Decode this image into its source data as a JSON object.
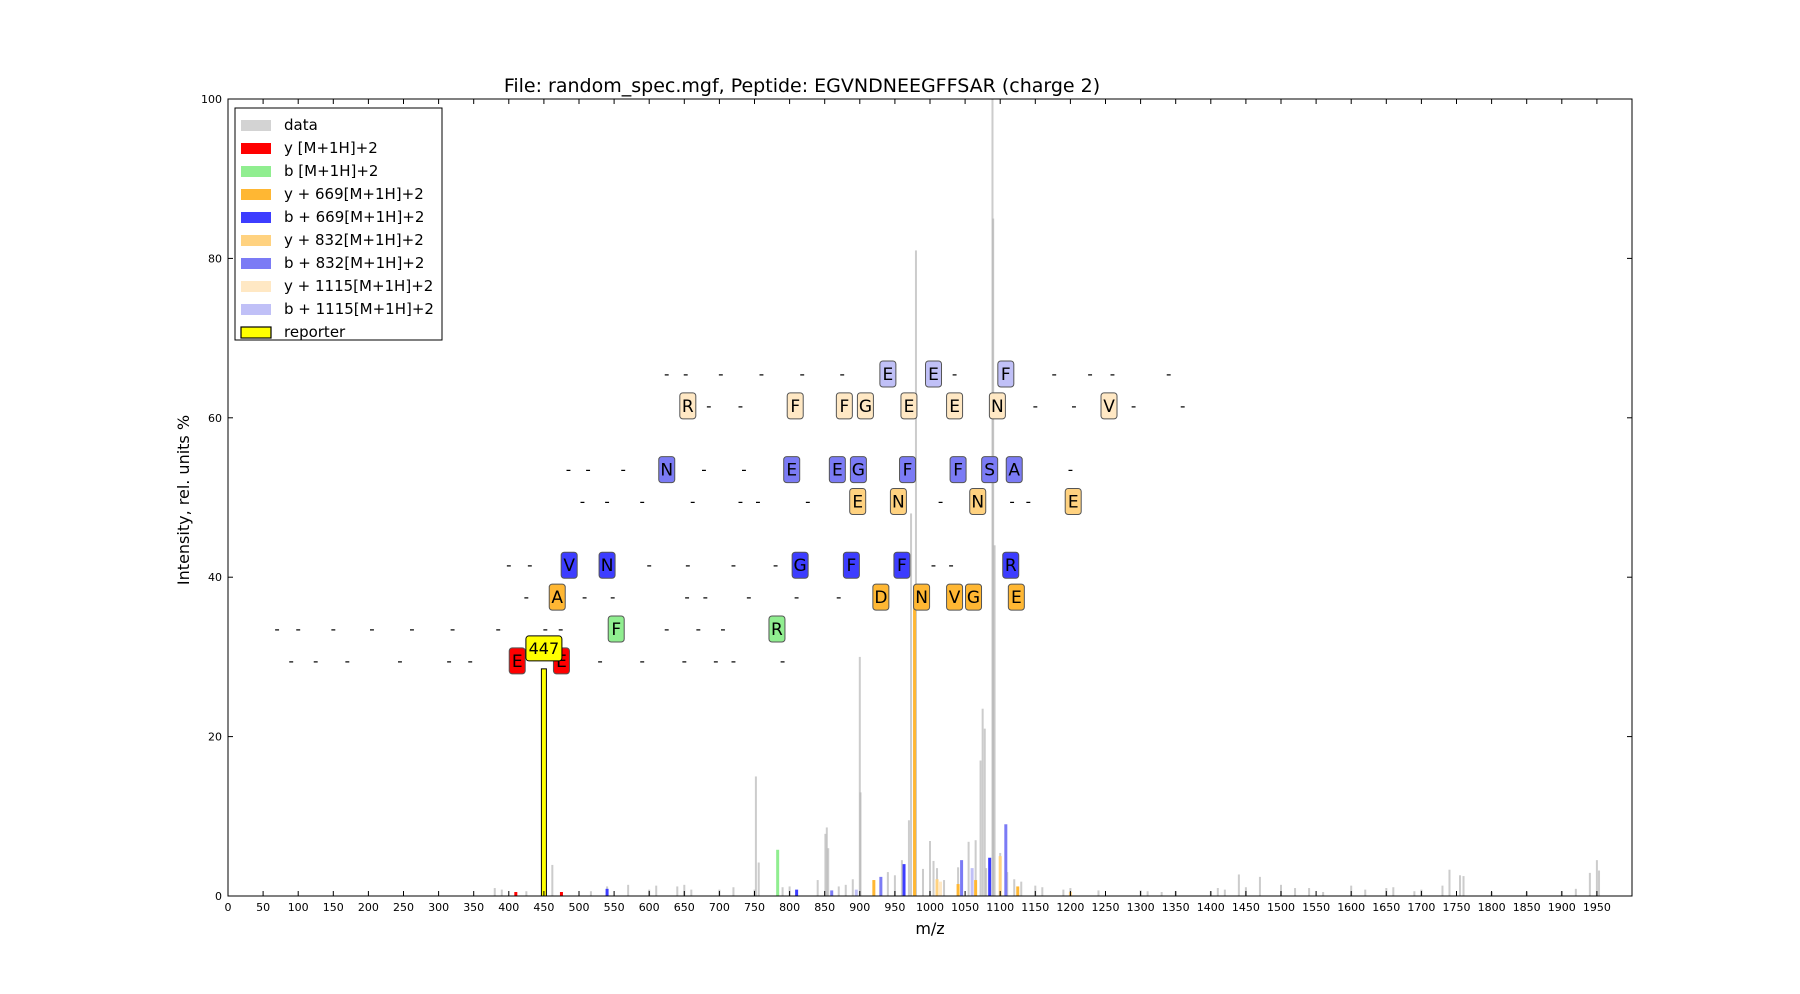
{
  "chart_data": {
    "type": "bar",
    "title": "File: random_spec.mgf, Peptide: EGVNDNEEGFFSAR (charge 2)",
    "xlabel": "m/z",
    "ylabel": "Intensity, rel. units %",
    "xlim": [
      0,
      2000
    ],
    "ylim": [
      0,
      100
    ],
    "x_ticks": [
      0,
      50,
      100,
      150,
      200,
      250,
      300,
      350,
      400,
      450,
      500,
      550,
      600,
      650,
      700,
      750,
      800,
      850,
      900,
      950,
      1000,
      1050,
      1100,
      1150,
      1200,
      1250,
      1300,
      1350,
      1400,
      1450,
      1500,
      1550,
      1600,
      1650,
      1700,
      1750,
      1800,
      1850,
      1900,
      1950
    ],
    "y_ticks": [
      0,
      20,
      40,
      60,
      80,
      100
    ],
    "grid": false,
    "legend_position": "top-left",
    "legend": [
      {
        "label": "data",
        "color": "#d3d3d3"
      },
      {
        "label": "y [M+1H]+2",
        "color": "#ff0000"
      },
      {
        "label": "b [M+1H]+2",
        "color": "#90ee90"
      },
      {
        "label": "y + 669[M+1H]+2",
        "color": "#ffb733"
      },
      {
        "label": "b + 669[M+1H]+2",
        "color": "#3d3dff"
      },
      {
        "label": "y + 832[M+1H]+2",
        "color": "#ffd280"
      },
      {
        "label": "b + 832[M+1H]+2",
        "color": "#7b7bf5"
      },
      {
        "label": "y + 1115[M+1H]+2",
        "color": "#ffe8c4"
      },
      {
        "label": "b + 1115[M+1H]+2",
        "color": "#c0c0f7"
      },
      {
        "label": "reporter",
        "color": "#ffff00"
      }
    ],
    "peaks_data": [
      [
        380,
        1
      ],
      [
        390,
        0.8
      ],
      [
        425,
        0.6
      ],
      [
        462,
        3.9
      ],
      [
        517,
        0.6
      ],
      [
        540,
        1.2
      ],
      [
        570,
        1.4
      ],
      [
        600,
        0.8
      ],
      [
        610,
        1.3
      ],
      [
        640,
        1.2
      ],
      [
        650,
        1.4
      ],
      [
        660,
        0.8
      ],
      [
        700,
        0.8
      ],
      [
        720,
        1.1
      ],
      [
        750,
        0.8
      ],
      [
        752,
        15
      ],
      [
        756,
        4.2
      ],
      [
        790,
        1.1
      ],
      [
        800,
        1.2
      ],
      [
        840,
        2
      ],
      [
        851,
        7.8
      ],
      [
        853,
        8.6
      ],
      [
        855,
        6
      ],
      [
        870,
        1.2
      ],
      [
        880,
        1.4
      ],
      [
        890,
        2.1
      ],
      [
        900,
        30
      ],
      [
        901,
        13
      ],
      [
        920,
        2
      ],
      [
        940,
        3
      ],
      [
        950,
        2.6
      ],
      [
        960,
        4.5
      ],
      [
        970,
        9.5
      ],
      [
        973,
        48
      ],
      [
        980,
        81
      ],
      [
        990,
        3.4
      ],
      [
        1000,
        6.9
      ],
      [
        1005,
        4.4
      ],
      [
        1010,
        3.5
      ],
      [
        1020,
        2
      ],
      [
        1040,
        3.6
      ],
      [
        1055,
        6.8
      ],
      [
        1065,
        7
      ],
      [
        1072,
        17
      ],
      [
        1075,
        23.5
      ],
      [
        1078,
        21
      ],
      [
        1080,
        3.5
      ],
      [
        1089,
        100
      ],
      [
        1090,
        85
      ],
      [
        1092,
        44
      ],
      [
        1100,
        5.4
      ],
      [
        1110,
        3
      ],
      [
        1120,
        2.1
      ],
      [
        1130,
        1.8
      ],
      [
        1150,
        1.3
      ],
      [
        1160,
        1.1
      ],
      [
        1190,
        0.8
      ],
      [
        1200,
        1
      ],
      [
        1240,
        0.7
      ],
      [
        1300,
        0.7
      ],
      [
        1310,
        0.6
      ],
      [
        1330,
        0.5
      ],
      [
        1350,
        0.6
      ],
      [
        1400,
        0.6
      ],
      [
        1410,
        1
      ],
      [
        1420,
        0.8
      ],
      [
        1440,
        2.7
      ],
      [
        1450,
        1.1
      ],
      [
        1470,
        2.4
      ],
      [
        1500,
        1.4
      ],
      [
        1520,
        1
      ],
      [
        1540,
        1
      ],
      [
        1560,
        0.5
      ],
      [
        1600,
        1.3
      ],
      [
        1620,
        0.8
      ],
      [
        1650,
        1
      ],
      [
        1660,
        1.1
      ],
      [
        1690,
        0.6
      ],
      [
        1700,
        0.8
      ],
      [
        1730,
        1.3
      ],
      [
        1740,
        3.3
      ],
      [
        1755,
        2.6
      ],
      [
        1760,
        2.5
      ],
      [
        1800,
        0.5
      ],
      [
        1850,
        0.5
      ],
      [
        1900,
        0.6
      ],
      [
        1920,
        0.9
      ],
      [
        1940,
        2.9
      ],
      [
        1950,
        4.5
      ],
      [
        1953,
        3.2
      ]
    ],
    "peaks_colored": [
      {
        "x": 450,
        "y": 28.5,
        "series": "reporter"
      },
      {
        "x": 410,
        "y": 0.5,
        "series": "y [M+1H]+2"
      },
      {
        "x": 475,
        "y": 0.5,
        "series": "y [M+1H]+2"
      },
      {
        "x": 783,
        "y": 5.8,
        "series": "b [M+1H]+2"
      },
      {
        "x": 978,
        "y": 37,
        "series": "y + 669[M+1H]+2"
      },
      {
        "x": 920,
        "y": 2,
        "series": "y + 669[M+1H]+2"
      },
      {
        "x": 1040,
        "y": 1.5,
        "series": "y + 669[M+1H]+2"
      },
      {
        "x": 1065,
        "y": 2,
        "series": "y + 669[M+1H]+2"
      },
      {
        "x": 1125,
        "y": 1.2,
        "series": "y + 669[M+1H]+2"
      },
      {
        "x": 1100,
        "y": 5,
        "series": "y + 832[M+1H]+2"
      },
      {
        "x": 1010,
        "y": 2.1,
        "series": "y + 832[M+1H]+2"
      },
      {
        "x": 1200,
        "y": 0.5,
        "series": "y + 832[M+1H]+2"
      },
      {
        "x": 963,
        "y": 4,
        "series": "b + 669[M+1H]+2"
      },
      {
        "x": 1085,
        "y": 4.8,
        "series": "b + 669[M+1H]+2"
      },
      {
        "x": 540,
        "y": 0.9,
        "series": "b + 669[M+1H]+2"
      },
      {
        "x": 810,
        "y": 0.8,
        "series": "b + 669[M+1H]+2"
      },
      {
        "x": 1045,
        "y": 4.5,
        "series": "b + 832[M+1H]+2"
      },
      {
        "x": 1108,
        "y": 9,
        "series": "b + 832[M+1H]+2"
      },
      {
        "x": 930,
        "y": 2.4,
        "series": "b + 832[M+1H]+2"
      },
      {
        "x": 860,
        "y": 0.7,
        "series": "b + 832[M+1H]+2"
      },
      {
        "x": 895,
        "y": 0.8,
        "series": "b + 1115[M+1H]+2"
      },
      {
        "x": 1060,
        "y": 3.5,
        "series": "b + 1115[M+1H]+2"
      },
      {
        "x": 1015,
        "y": 1.8,
        "series": "y + 1115[M+1H]+2"
      }
    ],
    "annotation_rows": [
      {
        "y": 29.5,
        "series": "y [M+1H]+2",
        "labels": [
          [
            90,
            "-"
          ],
          [
            125,
            "-"
          ],
          [
            170,
            "-"
          ],
          [
            245,
            "-"
          ],
          [
            315,
            "-"
          ],
          [
            345,
            "-"
          ],
          [
            412,
            "E"
          ],
          [
            475,
            "E"
          ],
          [
            530,
            "-"
          ],
          [
            590,
            "-"
          ],
          [
            650,
            "-"
          ],
          [
            695,
            "-"
          ],
          [
            720,
            "-"
          ],
          [
            790,
            "-"
          ]
        ]
      },
      {
        "y": 33.5,
        "series": "b [M+1H]+2",
        "labels": [
          [
            70,
            "-"
          ],
          [
            100,
            "-"
          ],
          [
            150,
            "-"
          ],
          [
            205,
            "-"
          ],
          [
            262,
            "-"
          ],
          [
            320,
            "-"
          ],
          [
            385,
            "-"
          ],
          [
            452,
            "-"
          ],
          [
            474,
            "-"
          ],
          [
            553,
            "F"
          ],
          [
            625,
            "-"
          ],
          [
            670,
            "-"
          ],
          [
            705,
            "-"
          ],
          [
            782,
            "R"
          ]
        ]
      },
      {
        "y": 37.5,
        "series": "y + 669[M+1H]+2",
        "labels": [
          [
            425,
            "-"
          ],
          [
            469,
            "A"
          ],
          [
            508,
            "-"
          ],
          [
            548,
            "-"
          ],
          [
            654,
            "-"
          ],
          [
            680,
            "-"
          ],
          [
            742,
            "-"
          ],
          [
            810,
            "-"
          ],
          [
            870,
            "-"
          ],
          [
            930,
            "D"
          ],
          [
            988,
            "N"
          ],
          [
            1035,
            "V"
          ],
          [
            1062,
            "G"
          ],
          [
            1123,
            "E"
          ]
        ]
      },
      {
        "y": 41.5,
        "series": "b + 669[M+1H]+2",
        "labels": [
          [
            400,
            "-"
          ],
          [
            430,
            "-"
          ],
          [
            486,
            "V"
          ],
          [
            540,
            "N"
          ],
          [
            600,
            "-"
          ],
          [
            655,
            "-"
          ],
          [
            720,
            "-"
          ],
          [
            780,
            "-"
          ],
          [
            815,
            "G"
          ],
          [
            888,
            "F"
          ],
          [
            960,
            "F"
          ],
          [
            1005,
            "-"
          ],
          [
            1030,
            "-"
          ],
          [
            1115,
            "R"
          ]
        ]
      },
      {
        "y": 49.5,
        "series": "y + 832[M+1H]+2",
        "labels": [
          [
            505,
            "-"
          ],
          [
            540,
            "-"
          ],
          [
            590,
            "-"
          ],
          [
            662,
            "-"
          ],
          [
            730,
            "-"
          ],
          [
            755,
            "-"
          ],
          [
            826,
            "-"
          ],
          [
            897,
            "E"
          ],
          [
            955,
            "N"
          ],
          [
            1015,
            "-"
          ],
          [
            1068,
            "N"
          ],
          [
            1117,
            "-"
          ],
          [
            1140,
            "-"
          ],
          [
            1204,
            "E"
          ]
        ]
      },
      {
        "y": 53.5,
        "series": "b + 832[M+1H]+2",
        "labels": [
          [
            485,
            "-"
          ],
          [
            513,
            "-"
          ],
          [
            563,
            "-"
          ],
          [
            625,
            "N"
          ],
          [
            678,
            "-"
          ],
          [
            735,
            "-"
          ],
          [
            803,
            "E"
          ],
          [
            868,
            "E"
          ],
          [
            898,
            "G"
          ],
          [
            968,
            "F"
          ],
          [
            1040,
            "F"
          ],
          [
            1085,
            "S"
          ],
          [
            1120,
            "A"
          ],
          [
            1200,
            "-"
          ]
        ]
      },
      {
        "y": 61.5,
        "series": "y + 1115[M+1H]+2",
        "labels": [
          [
            655,
            "R"
          ],
          [
            685,
            "-"
          ],
          [
            730,
            "-"
          ],
          [
            808,
            "F"
          ],
          [
            878,
            "F"
          ],
          [
            908,
            "G"
          ],
          [
            970,
            "E"
          ],
          [
            1035,
            "E"
          ],
          [
            1096,
            "N"
          ],
          [
            1150,
            "-"
          ],
          [
            1205,
            "-"
          ],
          [
            1255,
            "V"
          ],
          [
            1290,
            "-"
          ],
          [
            1360,
            "-"
          ]
        ]
      },
      {
        "y": 65.5,
        "series": "b + 1115[M+1H]+2",
        "labels": [
          [
            625,
            "-"
          ],
          [
            652,
            "-"
          ],
          [
            702,
            "-"
          ],
          [
            760,
            "-"
          ],
          [
            818,
            "-"
          ],
          [
            875,
            "-"
          ],
          [
            940,
            "E"
          ],
          [
            1005,
            "E"
          ],
          [
            1035,
            "-"
          ],
          [
            1108,
            "F"
          ],
          [
            1177,
            "-"
          ],
          [
            1228,
            "-"
          ],
          [
            1260,
            "-"
          ],
          [
            1340,
            "-"
          ]
        ]
      }
    ],
    "reporter_label": {
      "x": 450,
      "y": 31,
      "text": "447"
    }
  }
}
